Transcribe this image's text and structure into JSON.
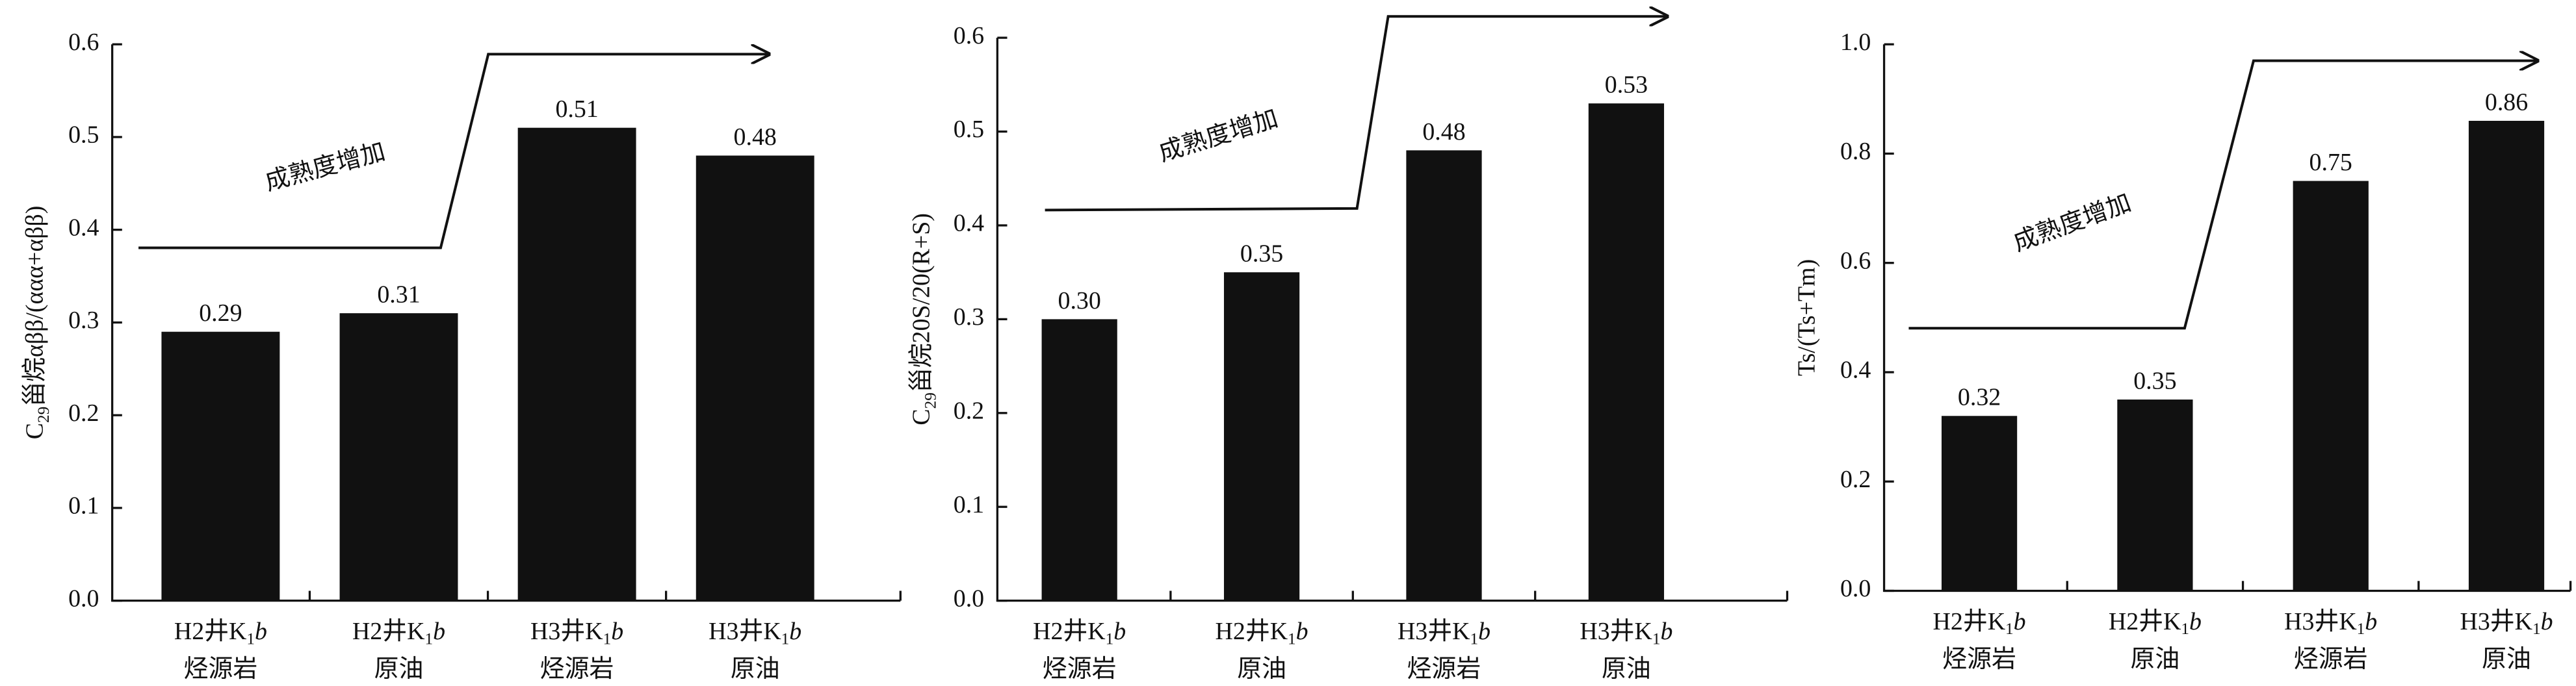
{
  "chart_data": [
    {
      "type": "bar",
      "ylabel": [
        "C",
        "29",
        "甾烷αββ/(ααα+αββ)"
      ],
      "annotation": "成熟度增加",
      "categories": [
        {
          "well": "H2井K",
          "sub": "1",
          "italic": "b",
          "kind": "烃源岩"
        },
        {
          "well": "H2井K",
          "sub": "1",
          "italic": "b",
          "kind": "原油"
        },
        {
          "well": "H3井K",
          "sub": "1",
          "italic": "b",
          "kind": "烃源岩"
        },
        {
          "well": "H3井K",
          "sub": "1",
          "italic": "b",
          "kind": "原油"
        }
      ],
      "values": [
        0.29,
        0.31,
        0.51,
        0.48
      ],
      "value_labels": [
        "0.29",
        "0.31",
        "0.51",
        "0.48"
      ],
      "color": "#111111",
      "ylim": [
        0,
        0.6
      ],
      "yticks": [
        {
          "value": 0,
          "label": "0.0"
        },
        0.1,
        0.2,
        0.3,
        0.4,
        0.5,
        0.6
      ]
    },
    {
      "type": "bar",
      "ylabel": [
        "C",
        "29",
        "甾烷20S/20(R+S)"
      ],
      "annotation": "成熟度增加",
      "categories": [
        {
          "well": "H2井K",
          "sub": "1",
          "italic": "b",
          "kind": "烃源岩"
        },
        {
          "well": "H2井K",
          "sub": "1",
          "italic": "b",
          "kind": "原油"
        },
        {
          "well": "H3井K",
          "sub": "1",
          "italic": "b",
          "kind": "烃源岩"
        },
        {
          "well": "H3井K",
          "sub": "1",
          "italic": "b",
          "kind": "原油"
        }
      ],
      "values": [
        0.3,
        0.35,
        0.48,
        0.53
      ],
      "value_labels": [
        "0.30",
        "0.35",
        "0.48",
        "0.53"
      ],
      "color": "#111111",
      "ylim": [
        0,
        0.6
      ],
      "yticks": [
        {
          "value": 0,
          "label": "0.0"
        },
        0.1,
        0.2,
        0.3,
        0.4,
        0.5,
        0.6
      ]
    },
    {
      "type": "bar",
      "ylabel": [
        "Ts/(Ts+Tm)"
      ],
      "annotation": "成熟度增加",
      "categories": [
        {
          "well": "H2井K",
          "sub": "1",
          "italic": "b",
          "kind": "烃源岩"
        },
        {
          "well": "H2井K",
          "sub": "1",
          "italic": "b",
          "kind": "原油"
        },
        {
          "well": "H3井K",
          "sub": "1",
          "italic": "b",
          "kind": "烃源岩"
        },
        {
          "well": "H3井K",
          "sub": "1",
          "italic": "b",
          "kind": "原油"
        }
      ],
      "values": [
        0.32,
        0.35,
        0.75,
        0.86
      ],
      "value_labels": [
        "0.32",
        "0.35",
        "0.75",
        "0.86"
      ],
      "color": "#111111",
      "ylim": [
        0,
        1.0
      ],
      "yticks": [
        {
          "value": 0,
          "label": "0.0"
        },
        0.2,
        0.4,
        0.6,
        0.8,
        {
          "value": 1.0,
          "label": "1.0"
        }
      ]
    }
  ]
}
